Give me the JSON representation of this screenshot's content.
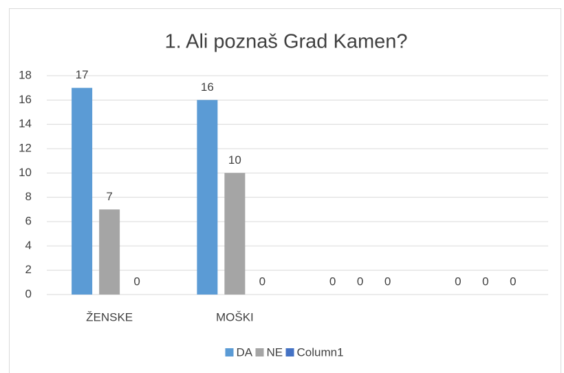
{
  "chart_data": {
    "type": "bar",
    "title": "1. Ali poznaš Grad Kamen?",
    "categories": [
      "ŽENSKE",
      "MOŠKI",
      null,
      null
    ],
    "series": [
      {
        "name": "DA",
        "color": "#5b9bd5",
        "values": [
          17,
          16,
          0,
          0
        ]
      },
      {
        "name": "NE",
        "color": "#a5a5a5",
        "values": [
          7,
          10,
          0,
          0
        ]
      },
      {
        "name": "Column1",
        "color": "#4472c4",
        "values": [
          0,
          0,
          0,
          0
        ]
      }
    ],
    "ylim": [
      0,
      18
    ],
    "yticks": [
      0,
      2,
      4,
      6,
      8,
      10,
      12,
      14,
      16,
      18
    ],
    "grid": true,
    "legend": "bottom"
  }
}
